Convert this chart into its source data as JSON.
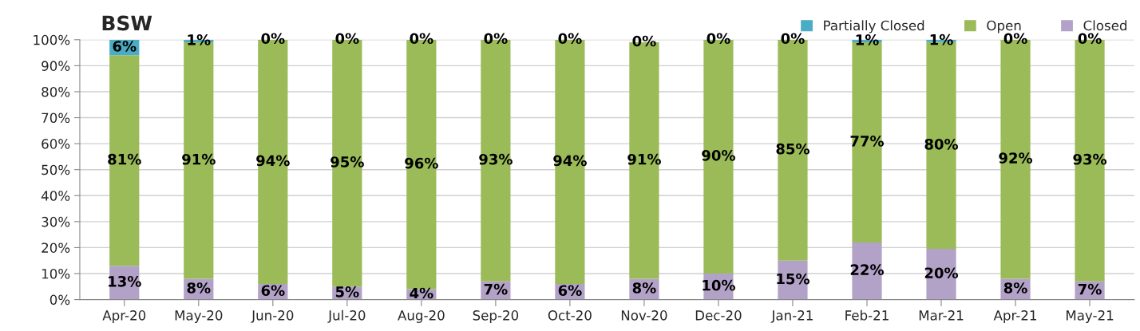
{
  "chart_data": {
    "type": "bar",
    "title": "BSW",
    "stacked": true,
    "grid": "y",
    "legend": "top right",
    "categories": [
      "Apr-20",
      "May-20",
      "Jun-20",
      "Jul-20",
      "Aug-20",
      "Sep-20",
      "Oct-20",
      "Nov-20",
      "Dec-20",
      "Jan-21",
      "Feb-21",
      "Mar-21",
      "Apr-21",
      "May-21"
    ],
    "series": [
      {
        "name": "Closed",
        "color": "#b3a2c7",
        "values": [
          13,
          8,
          6,
          5,
          4,
          7,
          6,
          8,
          10,
          15,
          22,
          19.5,
          8,
          7
        ],
        "value_labels": [
          "13%",
          "8%",
          "6%",
          "5%",
          "4%",
          "7%",
          "6%",
          "8%",
          "10%",
          "15%",
          "22%",
          "20%",
          "8%",
          "7%"
        ]
      },
      {
        "name": "Open",
        "color": "#9bbb59",
        "values": [
          81,
          91,
          94,
          95,
          96,
          93,
          94,
          91,
          90,
          85,
          77,
          79.6,
          92,
          93
        ],
        "value_labels": [
          "81%",
          "91%",
          "94%",
          "95%",
          "96%",
          "93%",
          "94%",
          "91%",
          "90%",
          "85%",
          "77%",
          "80%",
          "92%",
          "93%"
        ]
      },
      {
        "name": "Partially Closed",
        "color": "#4bacc6",
        "values": [
          6,
          1,
          0,
          0,
          0,
          0,
          0,
          0,
          0,
          0,
          1,
          0.9,
          0,
          0
        ],
        "value_labels": [
          "6%",
          "1%",
          "0%",
          "0%",
          "0%",
          "0%",
          "0%",
          "0%",
          "0%",
          "0%",
          "1%",
          "1%",
          "0%",
          "0%"
        ]
      }
    ],
    "ylim": [
      0,
      100
    ],
    "yticks": [
      {
        "value": 0,
        "label": "0%"
      },
      {
        "value": 10,
        "label": "10%"
      },
      {
        "value": 20,
        "label": "20%"
      },
      {
        "value": 30,
        "label": "30%"
      },
      {
        "value": 40,
        "label": "40%"
      },
      {
        "value": 50,
        "label": "50%"
      },
      {
        "value": 60,
        "label": "60%"
      },
      {
        "value": 70,
        "label": "70%"
      },
      {
        "value": 80,
        "label": "80%"
      },
      {
        "value": 90,
        "label": "90%"
      },
      {
        "value": 100,
        "label": "100%"
      }
    ]
  }
}
